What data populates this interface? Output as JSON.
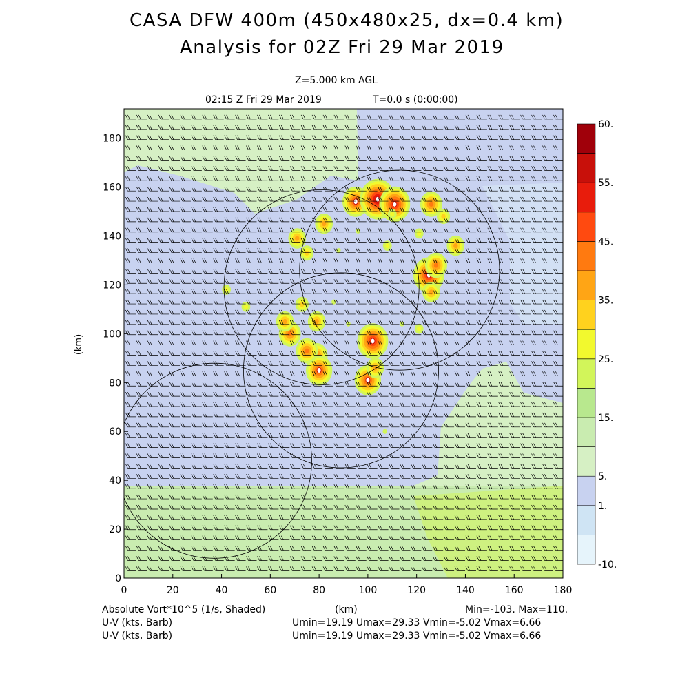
{
  "header": {
    "title_line1": "CASA DFW 400m (450x480x25, dx=0.4 km)",
    "title_line2": "Analysis for 02Z Fri 29 Mar 2019",
    "level": "Z=5.000 km AGL",
    "valid_time": "02:15 Z Fri 29 Mar 2019",
    "elapsed": "T=0.0 s (0:00:00)"
  },
  "footer": {
    "field1": "Absolute Vort*10^5 (1/s, Shaded)",
    "field2": "U-V (kts, Barb)",
    "field3": "U-V (kts, Barb)",
    "x_unit": "(km)",
    "minmax": "Min=-103. Max=110.",
    "uv_stats1": "Umin=19.19 Umax=29.33 Vmin=-5.02 Vmax=6.66",
    "uv_stats2": "Umin=19.19 Umax=29.33 Vmin=-5.02 Vmax=6.66"
  },
  "colors": {
    "levels_bg": [
      "#e6f4fb",
      "#cfe4f4",
      "#c8d2f0",
      "#d6f0c4",
      "#c9ecb0",
      "#b8e88e",
      "#d2f55a",
      "#f2f92e",
      "#ffd21e",
      "#ffa515",
      "#ff7a10",
      "#ff4a10",
      "#e81c0c",
      "#c8100a",
      "#a0000a"
    ]
  },
  "chart_data": {
    "type": "heatmap",
    "title": "CASA DFW 400m (450x480x25, dx=0.4 km)",
    "subtitle": "Analysis for 02Z Fri 29 Mar 2019",
    "xlabel": "(km)",
    "ylabel": "(km)",
    "xlim": [
      0,
      180
    ],
    "ylim": [
      0,
      192
    ],
    "x_ticks": [
      "0",
      "20",
      "40",
      "60",
      "80",
      "100",
      "120",
      "140",
      "160",
      "180"
    ],
    "y_ticks": [
      "0",
      "20",
      "40",
      "60",
      "80",
      "100",
      "120",
      "140",
      "160",
      "180"
    ],
    "colorbar": {
      "levels": [
        -10,
        -5,
        1,
        5,
        10,
        15,
        20,
        25,
        30,
        35,
        40,
        45,
        50,
        55,
        60
      ],
      "labels": [
        "-10.",
        "1.",
        "5.",
        "15.",
        "25.",
        "35.",
        "45.",
        "55.",
        "60."
      ],
      "label_values": [
        -10,
        1,
        5,
        15,
        25,
        35,
        45,
        55,
        60
      ]
    },
    "range_rings": [
      {
        "center": [
          81,
          119
        ],
        "radius": 40
      },
      {
        "center": [
          89,
          85
        ],
        "radius": 40
      },
      {
        "center": [
          37,
          48
        ],
        "radius": 40
      },
      {
        "center": [
          113,
          126
        ],
        "radius": 41
      }
    ],
    "vorticity_cells": [
      {
        "x": 79,
        "y": 91,
        "value": 40
      },
      {
        "x": 80,
        "y": 85,
        "value": 45
      },
      {
        "x": 75,
        "y": 93,
        "value": 40
      },
      {
        "x": 68,
        "y": 100,
        "value": 40
      },
      {
        "x": 66,
        "y": 105,
        "value": 35
      },
      {
        "x": 73,
        "y": 112,
        "value": 30
      },
      {
        "x": 79,
        "y": 105,
        "value": 35
      },
      {
        "x": 102,
        "y": 97,
        "value": 50
      },
      {
        "x": 100,
        "y": 81,
        "value": 45
      },
      {
        "x": 103,
        "y": 86,
        "value": 35
      },
      {
        "x": 95,
        "y": 154,
        "value": 45
      },
      {
        "x": 104,
        "y": 155,
        "value": 55
      },
      {
        "x": 111,
        "y": 153,
        "value": 50
      },
      {
        "x": 126,
        "y": 153,
        "value": 40
      },
      {
        "x": 82,
        "y": 145,
        "value": 35
      },
      {
        "x": 71,
        "y": 139,
        "value": 35
      },
      {
        "x": 75,
        "y": 133,
        "value": 30
      },
      {
        "x": 125,
        "y": 124,
        "value": 50
      },
      {
        "x": 128,
        "y": 128,
        "value": 40
      },
      {
        "x": 126,
        "y": 117,
        "value": 35
      },
      {
        "x": 136,
        "y": 136,
        "value": 35
      },
      {
        "x": 121,
        "y": 141,
        "value": 25
      },
      {
        "x": 42,
        "y": 118,
        "value": 25
      },
      {
        "x": 50,
        "y": 111,
        "value": 25
      },
      {
        "x": 110,
        "y": 149,
        "value": 25
      },
      {
        "x": 131,
        "y": 148,
        "value": 30
      },
      {
        "x": 108,
        "y": 136,
        "value": 25
      },
      {
        "x": 96,
        "y": 142,
        "value": 20
      },
      {
        "x": 92,
        "y": 104,
        "value": 20
      },
      {
        "x": 86,
        "y": 113,
        "value": 20
      },
      {
        "x": 121,
        "y": 102,
        "value": 25
      },
      {
        "x": 114,
        "y": 104,
        "value": 20
      },
      {
        "x": 107,
        "y": 60,
        "value": 20
      },
      {
        "x": 88,
        "y": 134,
        "value": 20
      }
    ]
  }
}
